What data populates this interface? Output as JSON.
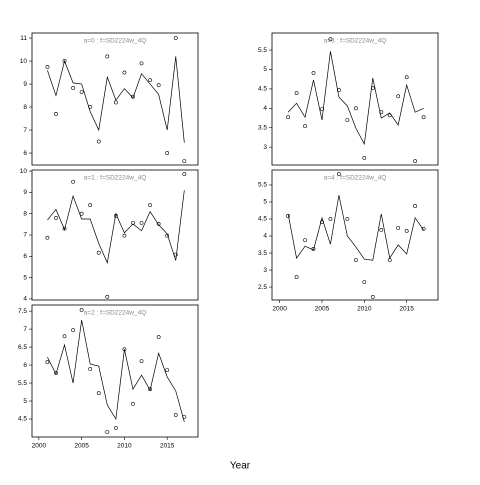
{
  "xlabel": "Year",
  "chart_data": [
    {
      "type": "line",
      "title": "a=0 : f=SD2224w_4Q",
      "x": [
        2001,
        2002,
        2003,
        2004,
        2005,
        2006,
        2007,
        2008,
        2009,
        2010,
        2011,
        2012,
        2013,
        2014,
        2015,
        2016,
        2017
      ],
      "xlim": [
        1999.2,
        2018.6
      ],
      "ylim": [
        5.48,
        11.22
      ],
      "yticks": [
        6,
        7,
        8,
        9,
        10,
        11
      ],
      "series": [
        {
          "mode": "markers",
          "color": "#000000",
          "values": [
            9.74,
            7.7,
            10.0,
            8.83,
            8.65,
            8.0,
            6.5,
            10.2,
            8.2,
            9.5,
            8.45,
            9.9,
            9.17,
            8.95,
            6.0,
            11.0,
            5.65
          ]
        },
        {
          "mode": "lines",
          "color": "#000000",
          "values": [
            9.6,
            8.5,
            10.0,
            9.05,
            9.0,
            7.8,
            7.0,
            9.3,
            8.3,
            8.8,
            8.4,
            9.45,
            9.0,
            8.55,
            7.0,
            10.2,
            6.45
          ]
        }
      ]
    },
    {
      "type": "line",
      "title": "a=1 : f=SD2224w_4Q",
      "x": [
        2001,
        2002,
        2003,
        2004,
        2005,
        2006,
        2007,
        2008,
        2009,
        2010,
        2011,
        2012,
        2013,
        2014,
        2015,
        2016,
        2017
      ],
      "xlim": [
        1999.2,
        2018.6
      ],
      "ylim": [
        3.95,
        10.05
      ],
      "yticks": [
        4,
        5,
        6,
        7,
        8,
        9,
        10
      ],
      "series": [
        {
          "mode": "markers",
          "color": "#000000",
          "values": [
            6.87,
            7.8,
            7.3,
            9.5,
            8.0,
            8.4,
            6.17,
            4.1,
            7.9,
            6.97,
            7.57,
            7.57,
            8.4,
            7.52,
            6.97,
            6.08,
            9.86
          ]
        },
        {
          "mode": "lines",
          "color": "#000000",
          "values": [
            7.7,
            8.2,
            7.25,
            8.83,
            7.75,
            7.75,
            6.6,
            5.7,
            8.0,
            7.1,
            7.52,
            7.2,
            8.1,
            7.48,
            7.05,
            5.8,
            9.1
          ]
        }
      ]
    },
    {
      "type": "line",
      "title": "a=2 : f=SD2224w_4Q",
      "x": [
        2001,
        2002,
        2003,
        2004,
        2005,
        2006,
        2007,
        2008,
        2009,
        2010,
        2011,
        2012,
        2013,
        2014,
        2015,
        2016,
        2017
      ],
      "xlim": [
        1999.2,
        2018.6
      ],
      "xticks": [
        2000,
        2005,
        2010,
        2015
      ],
      "ylim": [
        4.0,
        7.67
      ],
      "yticks": [
        4.5,
        5.0,
        5.5,
        6.0,
        6.5,
        7.0,
        7.5
      ],
      "series": [
        {
          "mode": "markers",
          "color": "#000000",
          "values": [
            6.08,
            5.78,
            6.8,
            6.97,
            7.53,
            5.89,
            5.22,
            4.14,
            4.25,
            6.44,
            4.92,
            6.11,
            5.33,
            6.78,
            5.86,
            4.61,
            4.56
          ]
        },
        {
          "mode": "lines",
          "color": "#000000",
          "values": [
            6.22,
            5.75,
            6.56,
            5.5,
            7.25,
            6.03,
            5.97,
            4.89,
            4.5,
            6.44,
            5.33,
            5.72,
            5.3,
            6.33,
            5.67,
            5.28,
            4.42
          ]
        }
      ]
    },
    {
      "type": "line",
      "title": "a=3 : f=SD2224w_4Q",
      "x": [
        2001,
        2002,
        2003,
        2004,
        2005,
        2006,
        2007,
        2008,
        2009,
        2010,
        2011,
        2012,
        2013,
        2014,
        2015,
        2016,
        2017
      ],
      "xlim": [
        1999.1,
        2018.7
      ],
      "ylim": [
        2.54,
        5.94
      ],
      "yticks": [
        3.0,
        3.5,
        4.0,
        4.5,
        5.0,
        5.5
      ],
      "series": [
        {
          "mode": "markers",
          "color": "#000000",
          "values": [
            3.77,
            4.39,
            3.54,
            4.91,
            3.98,
            5.78,
            4.47,
            3.7,
            4.0,
            2.72,
            4.52,
            3.9,
            3.82,
            4.31,
            4.8,
            2.64,
            3.77
          ]
        },
        {
          "mode": "lines",
          "color": "#000000",
          "values": [
            3.9,
            4.13,
            3.77,
            4.73,
            3.7,
            5.47,
            4.29,
            4.06,
            3.49,
            3.08,
            4.78,
            3.75,
            3.88,
            3.57,
            4.6,
            3.9,
            4.0
          ]
        }
      ]
    },
    {
      "type": "line",
      "title": "a=4 : f=SD2224w_4Q",
      "x": [
        2001,
        2002,
        2003,
        2004,
        2005,
        2006,
        2007,
        2008,
        2009,
        2010,
        2011,
        2012,
        2013,
        2014,
        2015,
        2016,
        2017
      ],
      "xlim": [
        1999.1,
        2018.7
      ],
      "xticks": [
        2000,
        2005,
        2010,
        2015
      ],
      "ylim": [
        2.12,
        5.94
      ],
      "yticks": [
        2.5,
        3.0,
        3.5,
        4.0,
        4.5,
        5.0,
        5.5
      ],
      "series": [
        {
          "mode": "markers",
          "color": "#000000",
          "values": [
            4.59,
            2.79,
            3.88,
            3.62,
            4.41,
            4.5,
            5.82,
            4.5,
            3.29,
            2.65,
            2.21,
            4.18,
            3.29,
            4.24,
            4.15,
            4.88,
            4.21
          ]
        },
        {
          "mode": "lines",
          "color": "#000000",
          "values": [
            4.65,
            3.35,
            3.7,
            3.59,
            4.53,
            3.76,
            5.2,
            4.0,
            3.68,
            3.32,
            3.29,
            4.65,
            3.35,
            3.74,
            3.47,
            4.53,
            4.18
          ]
        }
      ]
    }
  ]
}
